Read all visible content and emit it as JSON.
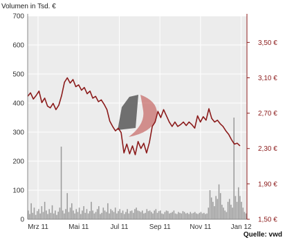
{
  "chart_data": {
    "type": "line",
    "title": "Volumen in Tsd. €",
    "source_label": "Quelle: vwd",
    "colors": {
      "price_line": "#8b1a1a",
      "volume_bars": "#9c9c9c",
      "plot_background": "#ececec",
      "grid": "#ffffff",
      "logo_dark": "#5a5a5a",
      "logo_red": "#c0504d"
    },
    "x_ticks": [
      "Mrz 11",
      "Mai 11",
      "Jul 11",
      "Sep 11",
      "Nov 11",
      "Jan 12"
    ],
    "y_left": {
      "ticks": [
        "0",
        "100",
        "200",
        "300",
        "400",
        "500",
        "600",
        "700"
      ],
      "range": [
        0,
        700
      ]
    },
    "y_right": {
      "ticks": [
        "1,50 €",
        "1,90 €",
        "2,30 €",
        "2,70 €",
        "3,10 €",
        "3,50 €"
      ],
      "range": [
        1.5,
        3.8
      ]
    },
    "series": [
      {
        "axis": "right",
        "type": "line",
        "points": [
          [
            0,
            2.89
          ],
          [
            2,
            2.93
          ],
          [
            4,
            2.86
          ],
          [
            6,
            2.9
          ],
          [
            8,
            2.95
          ],
          [
            10,
            2.82
          ],
          [
            12,
            2.87
          ],
          [
            14,
            2.78
          ],
          [
            16,
            2.76
          ],
          [
            18,
            2.81
          ],
          [
            20,
            2.74
          ],
          [
            22,
            2.79
          ],
          [
            24,
            2.9
          ],
          [
            26,
            3.05
          ],
          [
            28,
            3.1
          ],
          [
            30,
            3.04
          ],
          [
            32,
            3.08
          ],
          [
            34,
            3.0
          ],
          [
            36,
            3.02
          ],
          [
            38,
            2.96
          ],
          [
            40,
            2.99
          ],
          [
            42,
            2.92
          ],
          [
            44,
            2.95
          ],
          [
            46,
            2.87
          ],
          [
            48,
            2.89
          ],
          [
            50,
            2.83
          ],
          [
            52,
            2.85
          ],
          [
            54,
            2.8
          ],
          [
            56,
            2.74
          ],
          [
            58,
            2.61
          ],
          [
            60,
            2.55
          ],
          [
            62,
            2.5
          ],
          [
            64,
            2.53
          ],
          [
            66,
            2.48
          ],
          [
            68,
            2.25
          ],
          [
            70,
            2.35
          ],
          [
            72,
            2.24
          ],
          [
            74,
            2.33
          ],
          [
            76,
            2.23
          ],
          [
            78,
            2.38
          ],
          [
            80,
            2.3
          ],
          [
            82,
            2.36
          ],
          [
            84,
            2.25
          ],
          [
            86,
            2.37
          ],
          [
            88,
            2.55
          ],
          [
            90,
            2.6
          ],
          [
            92,
            2.72
          ],
          [
            94,
            2.65
          ],
          [
            96,
            2.74
          ],
          [
            98,
            2.67
          ],
          [
            100,
            2.6
          ],
          [
            102,
            2.55
          ],
          [
            104,
            2.6
          ],
          [
            106,
            2.55
          ],
          [
            108,
            2.57
          ],
          [
            110,
            2.6
          ],
          [
            112,
            2.56
          ],
          [
            114,
            2.6
          ],
          [
            116,
            2.57
          ],
          [
            118,
            2.53
          ],
          [
            120,
            2.67
          ],
          [
            122,
            2.6
          ],
          [
            124,
            2.66
          ],
          [
            126,
            2.62
          ],
          [
            128,
            2.75
          ],
          [
            130,
            2.64
          ],
          [
            132,
            2.6
          ],
          [
            134,
            2.62
          ],
          [
            136,
            2.58
          ],
          [
            138,
            2.55
          ],
          [
            140,
            2.5
          ],
          [
            142,
            2.46
          ],
          [
            144,
            2.4
          ],
          [
            146,
            2.35
          ],
          [
            148,
            2.36
          ],
          [
            150,
            2.33
          ]
        ]
      },
      {
        "axis": "left",
        "type": "bar",
        "values": [
          30,
          18,
          55,
          22,
          40,
          15,
          28,
          35,
          20,
          45,
          25,
          60,
          30,
          18,
          35,
          22,
          48,
          20,
          30,
          15,
          26,
          40,
          250,
          30,
          20,
          35,
          90,
          25,
          40,
          55,
          30,
          20,
          35,
          25,
          40,
          18,
          30,
          45,
          22,
          35,
          20,
          28,
          60,
          30,
          20,
          25,
          35,
          45,
          18,
          22,
          40,
          30,
          25,
          55,
          20,
          35,
          30,
          25,
          40,
          20,
          28,
          35,
          22,
          30,
          18,
          25,
          35,
          20,
          28,
          30,
          22,
          35,
          40,
          30,
          28,
          25,
          30,
          20,
          22,
          35,
          28,
          30,
          25,
          20,
          30,
          35,
          22,
          28,
          30,
          20,
          18,
          25,
          30,
          28,
          20,
          22,
          25,
          30,
          20,
          18,
          25,
          22,
          20,
          28,
          25,
          20,
          22,
          18,
          25,
          20,
          22,
          25,
          20,
          18,
          22,
          25,
          20,
          22,
          18,
          20,
          40,
          100,
          75,
          60,
          45,
          80,
          70,
          120,
          90,
          50,
          40,
          30,
          25,
          60,
          70,
          50,
          40,
          350,
          80,
          60,
          110,
          80,
          60,
          40,
          25,
          20
        ]
      }
    ]
  }
}
